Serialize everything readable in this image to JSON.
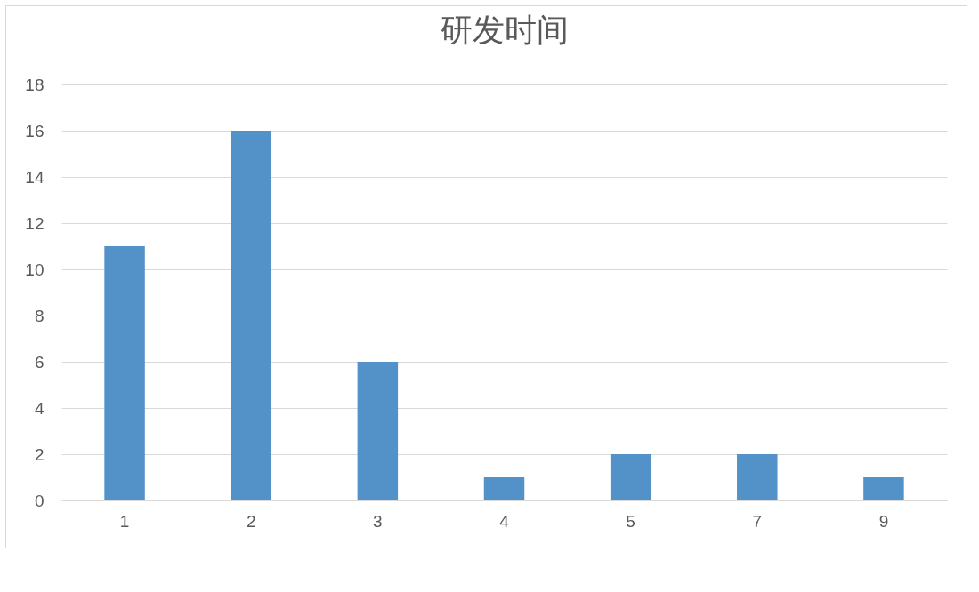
{
  "chart_data": {
    "type": "bar",
    "title": "研发时间",
    "categories": [
      "1",
      "2",
      "3",
      "4",
      "5",
      "7",
      "9"
    ],
    "values": [
      11,
      16,
      6,
      1,
      2,
      2,
      1
    ],
    "color": "#5392c8",
    "ylim": [
      0,
      18
    ],
    "yticks": [
      0,
      2,
      4,
      6,
      8,
      10,
      12,
      14,
      16,
      18
    ],
    "grid": "y"
  }
}
